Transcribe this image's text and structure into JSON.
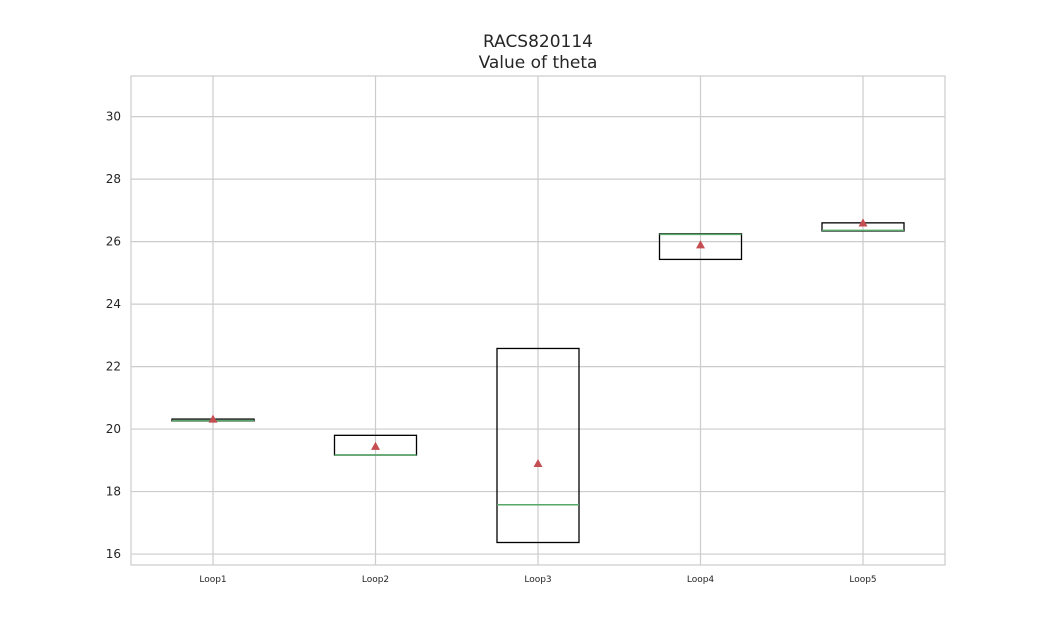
{
  "chart_data": {
    "type": "box",
    "title": "RACS820114",
    "subtitle": "Value of theta",
    "xlabel": "",
    "ylabel": "",
    "ylim": [
      15.65,
      31.3
    ],
    "yticks": [
      16,
      18,
      20,
      22,
      24,
      26,
      28,
      30
    ],
    "grid": true,
    "categories": [
      "Loop1",
      "Loop2",
      "Loop3",
      "Loop4",
      "Loop5"
    ],
    "boxes": [
      {
        "q1": 20.26,
        "median": 20.27,
        "q3": 20.32,
        "mean": 20.32
      },
      {
        "q1": 19.17,
        "median": 19.17,
        "q3": 19.8,
        "mean": 19.45
      },
      {
        "q1": 16.37,
        "median": 17.58,
        "q3": 22.58,
        "mean": 18.9
      },
      {
        "q1": 25.43,
        "median": 26.23,
        "q3": 26.25,
        "mean": 25.9
      },
      {
        "q1": 26.34,
        "median": 26.36,
        "q3": 26.6,
        "mean": 26.6
      }
    ],
    "colors": {
      "box": "#000000",
      "median": "#55a868",
      "mean": "#c44e52",
      "grid": "#cccccc",
      "axes": "#cccccc"
    }
  }
}
